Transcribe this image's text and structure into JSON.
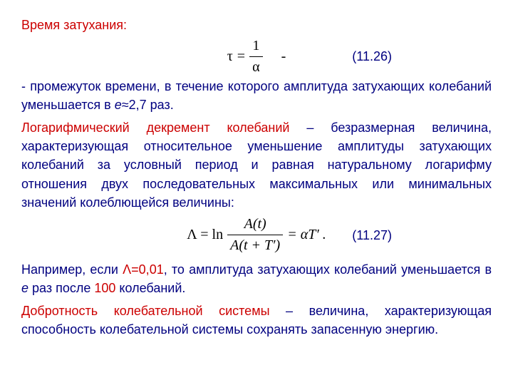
{
  "colors": {
    "text": "#000080",
    "highlight": "#cc0000",
    "formula": "#000000",
    "background": "#ffffff"
  },
  "typography": {
    "body_font": "Arial",
    "body_size_pt": 14,
    "formula_font": "Times New Roman",
    "formula_size_pt": 15
  },
  "title": "Время затухания:",
  "eq1": {
    "lhs": "τ",
    "rhs_top": "1",
    "rhs_bot": "α",
    "dash": "-",
    "number": "(11.26)"
  },
  "para1_a": "- промежуток времени, в течение которого амплитуда затухающих колебаний уменьшается в ",
  "para1_e": "е",
  "para1_b": "≈2,7 раз.",
  "para2_a": "Логарифмический декремент колебаний",
  "para2_b": " – безразмерная величина, характеризующая относительное уменьшение амплитуды затухающих колебаний за условный период и равная натуральному логарифму отношения двух последовательных максимальных или минимальных значений колеблющейся величины:",
  "eq2": {
    "lhs": "Λ = ln",
    "top": "A(t)",
    "bot": "A(t + T′)",
    "rhs": " = αT′ .",
    "number": "(11.27)"
  },
  "para3_a": "Например, если ",
  "para3_b": "Λ=0,01",
  "para3_c": ", то амплитуда затухающих колебаний уменьшается в ",
  "para3_d": "е",
  "para3_e": " раз после ",
  "para3_f": "100",
  "para3_g": " колебаний.",
  "para4_a": "Добротность колебательной системы",
  "para4_b": " – величина, характеризующая способность колебательной системы сохранять запасенную энергию."
}
